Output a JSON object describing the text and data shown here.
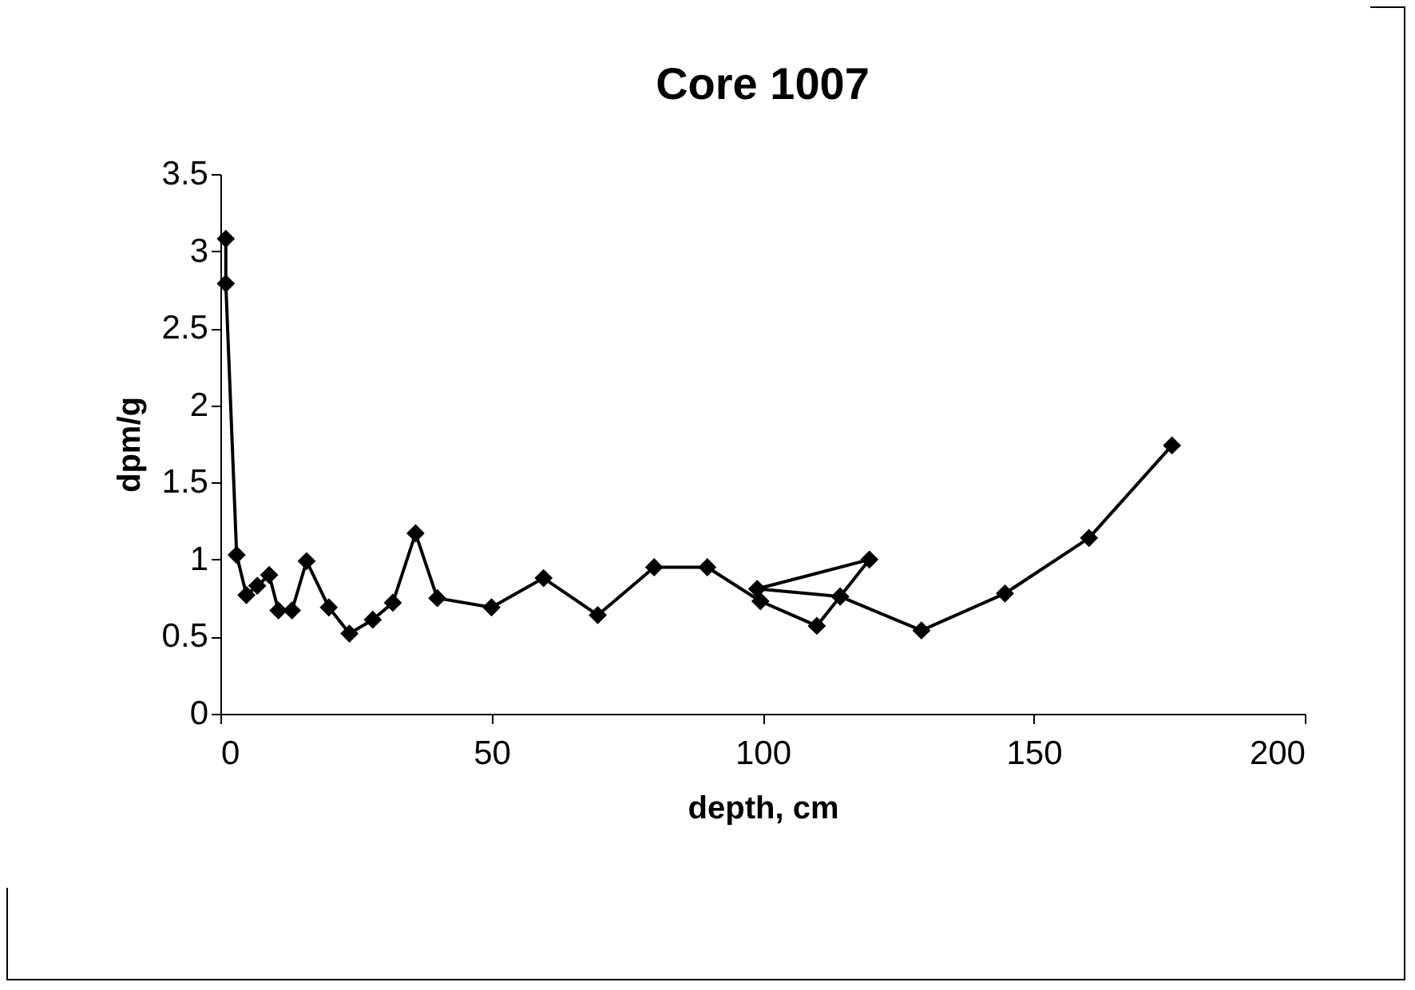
{
  "chart_data": {
    "type": "line",
    "title": "Core 1007",
    "xlabel": "depth, cm",
    "ylabel": "dpm/g",
    "x": [
      1,
      1,
      3,
      4.8,
      6.8,
      9,
      10.7,
      13.2,
      15.9,
      20,
      23.8,
      28.1,
      31.8,
      36,
      40,
      50,
      59.6,
      69.6,
      80,
      89.8,
      99.6,
      110,
      114.3,
      119.7,
      99,
      114.3,
      129.3,
      144.7,
      160.2,
      175.5
    ],
    "series": [
      {
        "color": "#000000",
        "values": [
          3.08,
          2.79,
          1.03,
          0.77,
          0.83,
          0.9,
          0.67,
          0.67,
          0.99,
          0.69,
          0.52,
          0.61,
          0.72,
          1.17,
          0.75,
          0.69,
          0.88,
          0.64,
          0.95,
          0.95,
          0.73,
          0.57,
          0.76,
          1.0,
          0.81,
          0.76,
          0.54,
          0.78,
          1.14,
          1.74
        ]
      }
    ],
    "xlim": [
      0,
      200
    ],
    "xticks": [
      0,
      50,
      100,
      150,
      200
    ],
    "ylim": [
      0,
      3.5
    ],
    "yticks": [
      0,
      0.5,
      1,
      1.5,
      2,
      2.5,
      3,
      3.5
    ],
    "grid": false,
    "marker": "diamond",
    "line_style": "solid"
  }
}
